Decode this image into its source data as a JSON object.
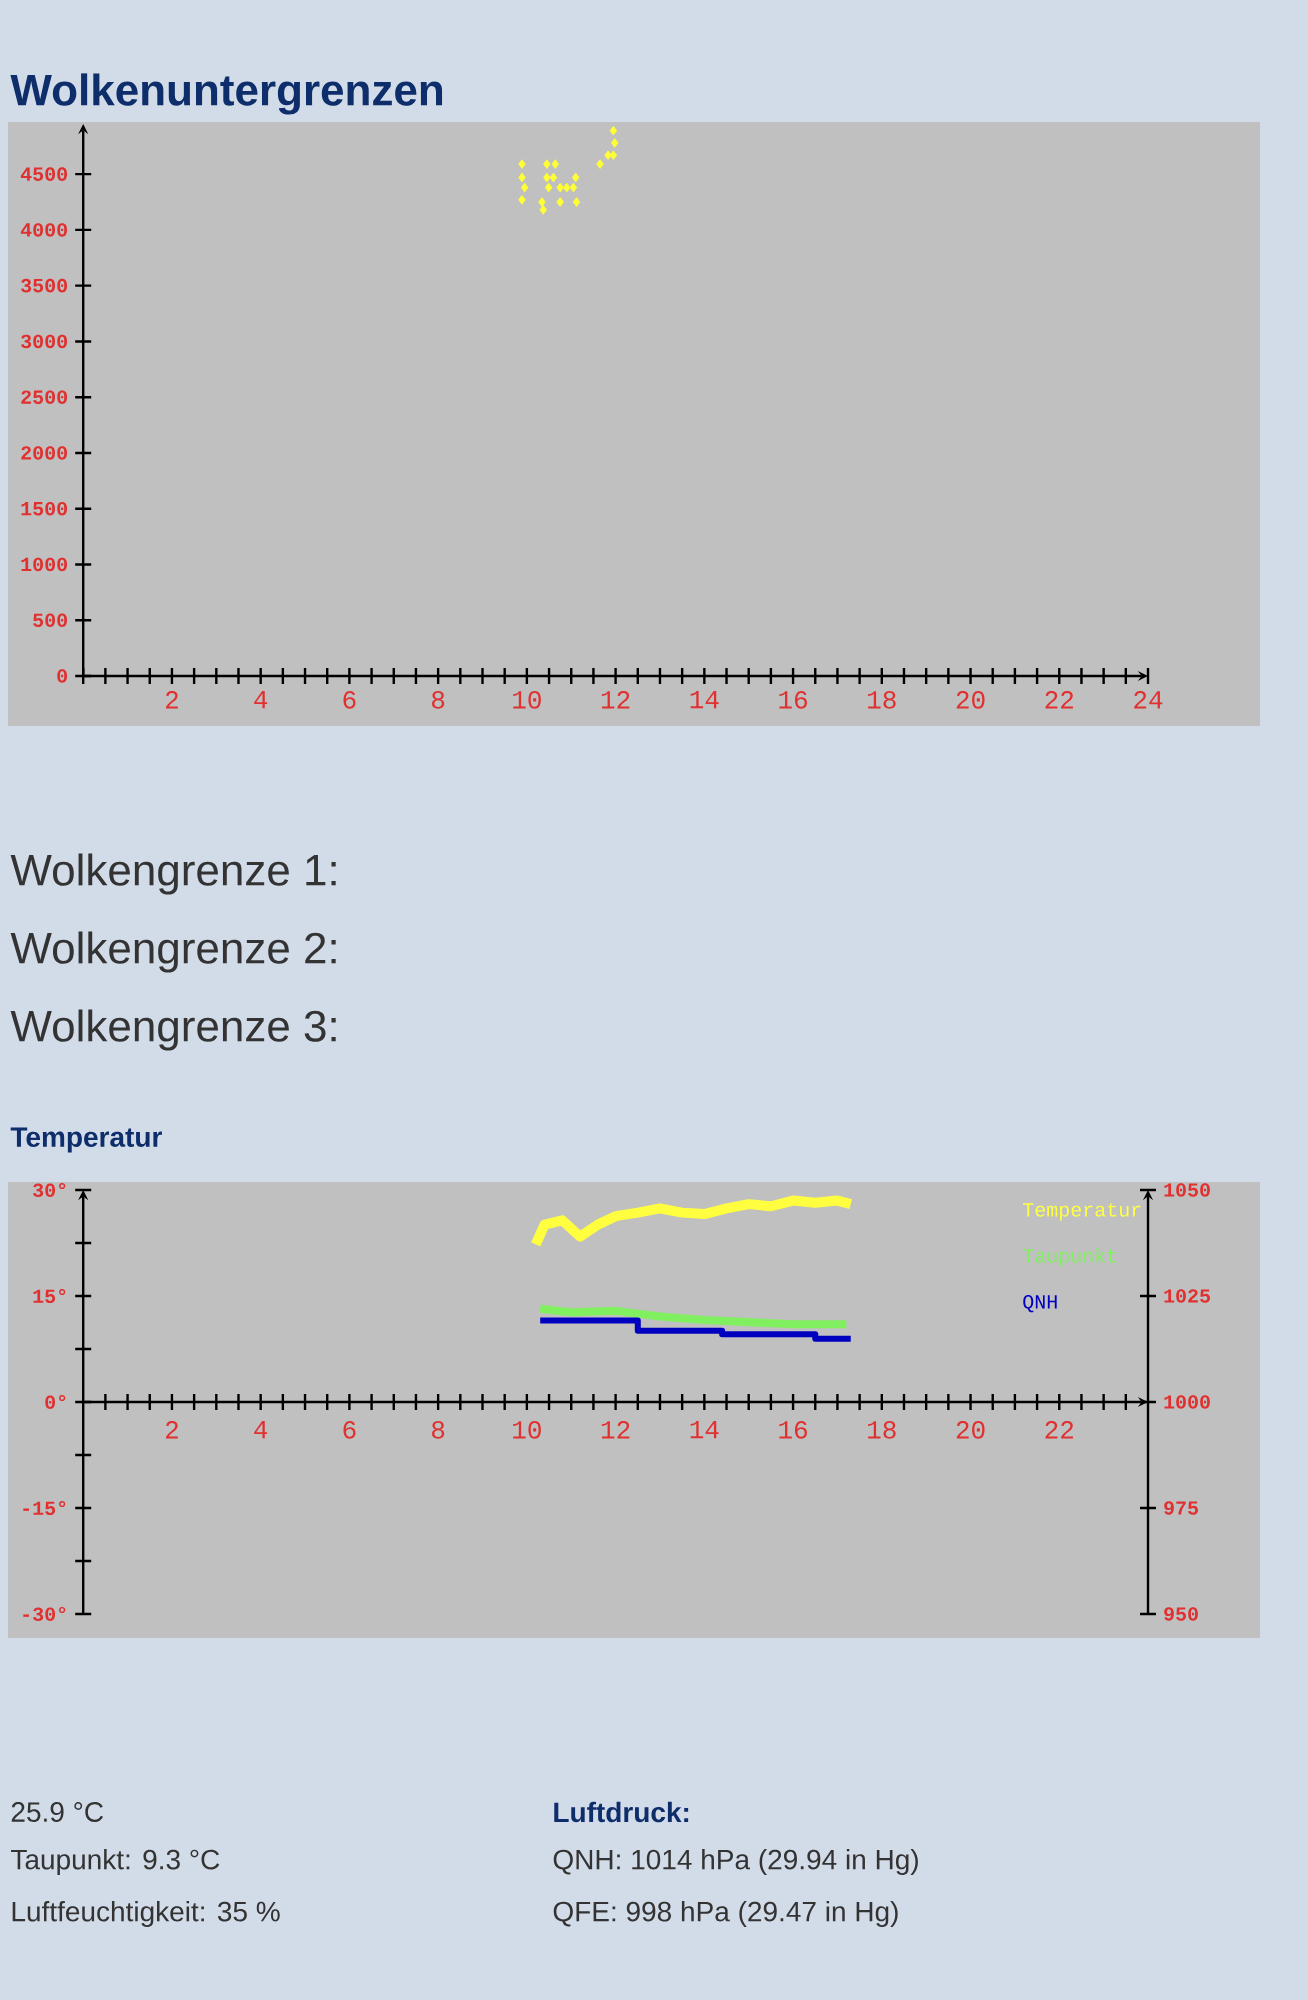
{
  "chart_data": [
    {
      "type": "scatter",
      "title": "Wolkenuntergrenzen",
      "color": "#ffff33",
      "marker": "diamond",
      "x": [
        9.89,
        9.89,
        9.95,
        9.89,
        10.34,
        10.37,
        10.45,
        10.64,
        10.45,
        10.6,
        10.49,
        10.75,
        10.9,
        11.05,
        11.1,
        10.75,
        11.12,
        11.65,
        11.83,
        11.95,
        11.98,
        11.95
      ],
      "values": [
        4590,
        4470,
        4380,
        4270,
        4250,
        4180,
        4590,
        4590,
        4470,
        4470,
        4380,
        4380,
        4380,
        4380,
        4470,
        4250,
        4250,
        4590,
        4670,
        4670,
        4780,
        4890
      ],
      "xlim": [
        0,
        24
      ],
      "ylim": [
        0,
        4950
      ],
      "xticks": [
        {
          "value": 0,
          "label": null
        },
        {
          "value": 0.5,
          "label": null
        },
        {
          "value": 1,
          "label": null
        },
        {
          "value": 1.5,
          "label": null
        },
        2,
        {
          "value": 2.5,
          "label": null
        },
        {
          "value": 3,
          "label": null
        },
        {
          "value": 3.5,
          "label": null
        },
        4,
        {
          "value": 4.5,
          "label": null
        },
        {
          "value": 5,
          "label": null
        },
        {
          "value": 5.5,
          "label": null
        },
        6,
        {
          "value": 6.5,
          "label": null
        },
        {
          "value": 7,
          "label": null
        },
        {
          "value": 7.5,
          "label": null
        },
        8,
        {
          "value": 8.5,
          "label": null
        },
        {
          "value": 9,
          "label": null
        },
        {
          "value": 9.5,
          "label": null
        },
        10,
        {
          "value": 10.5,
          "label": null
        },
        {
          "value": 11,
          "label": null
        },
        {
          "value": 11.5,
          "label": null
        },
        12,
        {
          "value": 12.5,
          "label": null
        },
        {
          "value": 13,
          "label": null
        },
        {
          "value": 13.5,
          "label": null
        },
        14,
        {
          "value": 14.5,
          "label": null
        },
        {
          "value": 15,
          "label": null
        },
        {
          "value": 15.5,
          "label": null
        },
        16,
        {
          "value": 16.5,
          "label": null
        },
        {
          "value": 17,
          "label": null
        },
        {
          "value": 17.5,
          "label": null
        },
        18,
        {
          "value": 18.5,
          "label": null
        },
        {
          "value": 19,
          "label": null
        },
        {
          "value": 19.5,
          "label": null
        },
        20,
        {
          "value": 20.5,
          "label": null
        },
        {
          "value": 21,
          "label": null
        },
        {
          "value": 21.5,
          "label": null
        },
        22,
        {
          "value": 22.5,
          "label": null
        },
        {
          "value": 23,
          "label": null
        },
        {
          "value": 23.5,
          "label": null
        },
        24
      ],
      "yticks": [
        0,
        500,
        1000,
        1500,
        2000,
        2500,
        3000,
        3500,
        4000,
        4500
      ],
      "annotations": [
        "Wolkengrenze 1:",
        "Wolkengrenze 2:",
        "Wolkengrenze 3:"
      ]
    },
    {
      "type": "line",
      "title": "Temperatur",
      "legend": "top right",
      "series": [
        {
          "name": "Temperatur",
          "color": "#ffff40",
          "x": [
            10.2,
            10.4,
            10.8,
            11.2,
            11.6,
            12,
            12.5,
            13,
            13.5,
            14,
            14.5,
            15,
            15.5,
            16,
            16.5,
            17,
            17.3
          ],
          "values": [
            22.3,
            25.1,
            25.7,
            23.4,
            25.1,
            26.3,
            26.8,
            27.4,
            26.8,
            26.6,
            27.4,
            28,
            27.7,
            28.5,
            28.2,
            28.5,
            28
          ]
        },
        {
          "name": "Taupunkt",
          "color": "#80f060",
          "x": [
            10.3,
            11,
            12,
            13,
            14,
            15,
            16,
            17.2
          ],
          "values": [
            13.2,
            12.7,
            12.9,
            12.1,
            11.6,
            11.3,
            11,
            11
          ]
        },
        {
          "name": "QNH",
          "type": "step",
          "axis": "y2",
          "color": "#0000c0",
          "x": [
            10.3,
            12.5,
            14.4,
            16.5,
            17.3
          ],
          "values": [
            1019.2,
            1016.8,
            1016.0,
            1014.9,
            1014.9
          ]
        }
      ],
      "xlim": [
        0,
        24
      ],
      "ylim": [
        -30,
        30
      ],
      "y2lim": [
        950,
        1050
      ],
      "xticks": [
        {
          "value": 0,
          "label": null
        },
        {
          "value": 0.5,
          "label": null
        },
        {
          "value": 1,
          "label": null
        },
        {
          "value": 1.5,
          "label": null
        },
        2,
        {
          "value": 2.5,
          "label": null
        },
        {
          "value": 3,
          "label": null
        },
        {
          "value": 3.5,
          "label": null
        },
        4,
        {
          "value": 4.5,
          "label": null
        },
        {
          "value": 5,
          "label": null
        },
        {
          "value": 5.5,
          "label": null
        },
        6,
        {
          "value": 6.5,
          "label": null
        },
        {
          "value": 7,
          "label": null
        },
        {
          "value": 7.5,
          "label": null
        },
        8,
        {
          "value": 8.5,
          "label": null
        },
        {
          "value": 9,
          "label": null
        },
        {
          "value": 9.5,
          "label": null
        },
        10,
        {
          "value": 10.5,
          "label": null
        },
        {
          "value": 11,
          "label": null
        },
        {
          "value": 11.5,
          "label": null
        },
        12,
        {
          "value": 12.5,
          "label": null
        },
        {
          "value": 13,
          "label": null
        },
        {
          "value": 13.5,
          "label": null
        },
        14,
        {
          "value": 14.5,
          "label": null
        },
        {
          "value": 15,
          "label": null
        },
        {
          "value": 15.5,
          "label": null
        },
        16,
        {
          "value": 16.5,
          "label": null
        },
        {
          "value": 17,
          "label": null
        },
        {
          "value": 17.5,
          "label": null
        },
        18,
        {
          "value": 18.5,
          "label": null
        },
        {
          "value": 19,
          "label": null
        },
        {
          "value": 19.5,
          "label": null
        },
        20,
        {
          "value": 20.5,
          "label": null
        },
        {
          "value": 21,
          "label": null
        },
        {
          "value": 21.5,
          "label": null
        },
        22,
        {
          "value": 22.5,
          "label": null
        },
        {
          "value": 23,
          "label": null
        },
        {
          "value": 23.5,
          "label": null
        }
      ],
      "yticks": [
        {
          "value": -30,
          "label": "-30°"
        },
        {
          "value": -22.5,
          "label": null
        },
        {
          "value": -15,
          "label": "-15°"
        },
        {
          "value": -7.5,
          "label": null
        },
        {
          "value": 0,
          "label": "0°"
        },
        {
          "value": 7.5,
          "label": null
        },
        {
          "value": 15,
          "label": "15°"
        },
        {
          "value": 22.5,
          "label": null
        },
        {
          "value": 30,
          "label": "30°"
        }
      ],
      "y2ticks": [
        950,
        975,
        1000,
        1025,
        1050
      ],
      "annotations": [
        "25.9 °C",
        "Taupunkt: 9.3 °C",
        "Luftfeuchtigkeit: 35 %",
        "Luftdruck:",
        "QNH: 1014 hPa (29.94 in Hg)",
        "QFE: 998 hPa (29.47 in Hg)"
      ]
    }
  ]
}
